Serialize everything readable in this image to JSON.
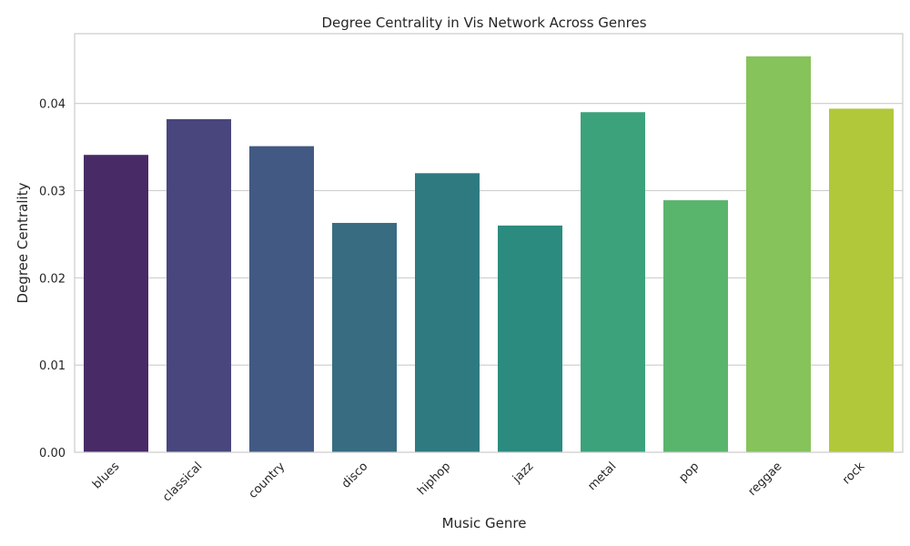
{
  "chart_data": {
    "type": "bar",
    "title": "Degree Centrality in Vis Network Across Genres",
    "xlabel": "Music Genre",
    "ylabel": "Degree Centrality",
    "categories": [
      "blues",
      "classical",
      "country",
      "disco",
      "hiphop",
      "jazz",
      "metal",
      "pop",
      "reggae",
      "rock"
    ],
    "values": [
      0.0341,
      0.0382,
      0.0351,
      0.0263,
      0.032,
      0.026,
      0.039,
      0.0289,
      0.0454,
      0.0394
    ],
    "colors": [
      "#482a67",
      "#48467c",
      "#425a83",
      "#386c81",
      "#2e7a80",
      "#2b8b7e",
      "#3ca27b",
      "#5ab56c",
      "#86c35a",
      "#b0c83a"
    ],
    "ylim": [
      0,
      0.048
    ],
    "yticks": [
      0.0,
      0.01,
      0.02,
      0.03,
      0.04
    ],
    "ytick_labels": [
      "0.00",
      "0.01",
      "0.02",
      "0.03",
      "0.04"
    ],
    "grid": true,
    "grid_color": "#cccccc",
    "frame_color": "#cccccc",
    "legend": "none"
  }
}
